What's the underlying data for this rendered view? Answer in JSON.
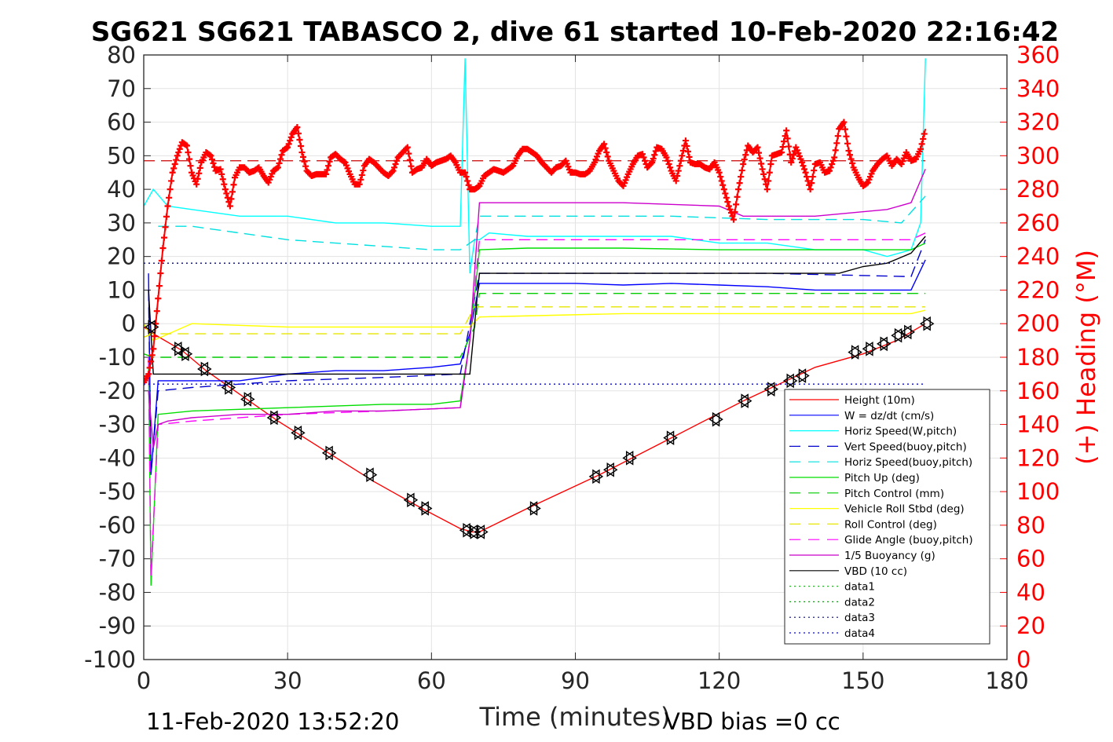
{
  "chart_data": {
    "type": "line",
    "title": "SG621 SG621 TABASCO 2, dive 61 started 10-Feb-2020 22:16:42",
    "xlabel": "Time (minutes)",
    "ylabel": "",
    "y2label": "(+) Heading (°M)",
    "xlim": [
      0,
      180
    ],
    "ylim": [
      -100,
      80
    ],
    "y2lim": [
      0,
      360
    ],
    "xticks": [
      "0",
      "30",
      "60",
      "90",
      "120",
      "150",
      "180"
    ],
    "yticks": [
      "80",
      "70",
      "60",
      "50",
      "40",
      "30",
      "20",
      "10",
      "0",
      "-10",
      "-20",
      "-30",
      "-40",
      "-50",
      "-60",
      "-70",
      "-80",
      "-90",
      "-100"
    ],
    "y2ticks": [
      "360",
      "340",
      "320",
      "300",
      "280",
      "260",
      "240",
      "220",
      "200",
      "180",
      "160",
      "140",
      "120",
      "100",
      "80",
      "60",
      "40",
      "20",
      "0"
    ],
    "grid": true,
    "legend_position": "bottom-right",
    "footer_left": "11-Feb-2020 13:52:20",
    "footer_right": "VBD bias =0 cc",
    "target_heading": 297,
    "series": [
      {
        "name": "Height (10m)",
        "color": "#ff0000",
        "style": "solid",
        "x": [
          0,
          2,
          8,
          13,
          20,
          28,
          38,
          48,
          58,
          66,
          68.5,
          70,
          80,
          95,
          110,
          125,
          140,
          150,
          157,
          163
        ],
        "y": [
          -1,
          -3,
          -8,
          -14,
          -21,
          -29,
          -38,
          -47,
          -55,
          -61,
          -62,
          -62,
          -55,
          -45,
          -34,
          -23,
          -13,
          -9,
          -5,
          0
        ]
      },
      {
        "name": "W = dz/dt (cm/s)",
        "color": "#0000ff",
        "style": "solid",
        "x": [
          1,
          1.5,
          3,
          10,
          20,
          30,
          40,
          50,
          60,
          66,
          68,
          70,
          80,
          90,
          100,
          110,
          120,
          130,
          140,
          150,
          160,
          163
        ],
        "y": [
          15,
          -45,
          -17,
          -17,
          -17,
          -15,
          -14,
          -14,
          -13,
          -12,
          -3,
          12,
          12,
          12,
          11.5,
          12,
          11.5,
          11,
          10,
          10,
          10,
          19
        ]
      },
      {
        "name": "Horiz Speed(W,pitch)",
        "color": "#00ffff",
        "style": "solid",
        "x": [
          0,
          2,
          5,
          10,
          20,
          30,
          40,
          50,
          60,
          66,
          67,
          68,
          69,
          70,
          72,
          80,
          90,
          100,
          110,
          120,
          130,
          140,
          150,
          155,
          160,
          162,
          163
        ],
        "y": [
          35,
          40,
          35,
          34,
          32,
          32,
          30,
          30,
          29,
          29,
          79,
          15,
          25,
          25,
          27,
          26,
          26,
          26,
          26,
          24,
          24,
          22,
          22,
          20,
          22,
          30,
          79
        ]
      },
      {
        "name": "Vert Speed(buoy,pitch)",
        "color": "#0000cc",
        "style": "dashed",
        "x": [
          1,
          1.5,
          3,
          10,
          30,
          50,
          66,
          68,
          70,
          100,
          130,
          160,
          163
        ],
        "y": [
          10,
          -45,
          -20,
          -19,
          -17,
          -16,
          -15,
          0,
          15,
          15,
          15,
          14,
          25
        ]
      },
      {
        "name": "Horiz Speed(buoy,pitch)",
        "color": "#00e0e0",
        "style": "dashed",
        "x": [
          3,
          10,
          20,
          30,
          40,
          50,
          60,
          66,
          69,
          70,
          90,
          110,
          130,
          150,
          158,
          163
        ],
        "y": [
          29,
          29,
          27,
          25,
          24,
          23,
          22,
          22,
          25,
          32,
          32,
          32,
          31,
          31,
          30,
          38
        ]
      },
      {
        "name": "Pitch Up (deg)",
        "color": "#00dd00",
        "style": "solid",
        "x": [
          1,
          1.5,
          3,
          10,
          30,
          50,
          60,
          66,
          68,
          70,
          80,
          100,
          120,
          140,
          160,
          163
        ],
        "y": [
          -10,
          -78,
          -27,
          -26,
          -25,
          -24,
          -24,
          -23,
          -5,
          22,
          22.5,
          22.5,
          22,
          22,
          22,
          24
        ]
      },
      {
        "name": "Pitch Control (mm)",
        "color": "#00cc00",
        "style": "dashed",
        "x": [
          0,
          2,
          10,
          66,
          69,
          70,
          163
        ],
        "y": [
          -9,
          -10,
          -10,
          -10,
          -1,
          9,
          9
        ]
      },
      {
        "name": "Vehicle Roll Stbd (deg)",
        "color": "#ffff00",
        "style": "solid",
        "x": [
          0,
          2,
          10,
          30,
          50,
          66,
          68,
          70,
          100,
          130,
          160,
          163
        ],
        "y": [
          0,
          -5,
          0,
          -1,
          -1,
          -1,
          -1,
          2,
          3,
          3,
          3,
          4
        ]
      },
      {
        "name": "Roll Control (deg)",
        "color": "#e6e600",
        "style": "dashed",
        "x": [
          0,
          2,
          10,
          66,
          69,
          70,
          163
        ],
        "y": [
          -4,
          -3,
          -3,
          -3,
          5,
          5,
          5
        ]
      },
      {
        "name": "Glide Angle (buoy,pitch)",
        "color": "#ff00ff",
        "style": "dashed",
        "x": [
          1,
          1.5,
          3,
          10,
          30,
          50,
          66,
          68,
          70,
          100,
          130,
          160,
          163
        ],
        "y": [
          -10,
          -75,
          -30,
          -29,
          -27,
          -26,
          -25,
          -5,
          25,
          25,
          25,
          25,
          27
        ]
      },
      {
        "name": "1/5 Buoyancy (g)",
        "color": "#cc00cc",
        "style": "solid",
        "x": [
          1,
          2,
          3,
          5,
          10,
          20,
          30,
          40,
          50,
          66,
          68,
          70,
          100,
          120,
          125,
          140,
          155,
          160,
          163
        ],
        "y": [
          -20,
          -37,
          -30,
          -29,
          -28,
          -27,
          -27,
          -26,
          -26,
          -25,
          -5,
          36,
          36,
          35,
          32,
          32,
          34,
          36,
          46
        ]
      },
      {
        "name": "VBD (10 cc)",
        "color": "#000000",
        "style": "solid",
        "x": [
          1,
          2,
          3,
          66,
          68,
          70,
          145,
          150,
          155,
          160,
          163
        ],
        "y": [
          10,
          -15,
          -15,
          -15,
          -15,
          15,
          15,
          17,
          18,
          21,
          26
        ]
      },
      {
        "name": "data1",
        "color": "#00cc00",
        "style": "dotted",
        "x": [],
        "y": []
      },
      {
        "name": "data2",
        "color": "#00aa00",
        "style": "dotted",
        "x": [],
        "y": []
      },
      {
        "name": "data3",
        "color": "#00008b",
        "style": "dotted",
        "x": [
          0,
          163
        ],
        "y": [
          18,
          18
        ]
      },
      {
        "name": "data4",
        "color": "#0000ff",
        "style": "dotted",
        "x": [
          0,
          163
        ],
        "y": [
          -18,
          -18
        ]
      }
    ],
    "heading_series": {
      "name": "(+) Heading",
      "color": "#ff0000",
      "x": [
        0,
        1,
        2,
        3,
        4,
        5,
        6,
        7,
        8,
        9,
        10,
        11,
        12,
        13,
        14,
        15,
        16,
        17,
        18,
        19,
        20,
        21,
        22,
        23,
        24,
        25,
        26,
        27,
        28,
        29,
        30,
        31,
        32,
        33,
        34,
        35,
        36,
        37,
        38,
        39,
        40,
        41,
        42,
        43,
        44,
        45,
        46,
        47,
        48,
        49,
        50,
        51,
        52,
        53,
        54,
        55,
        56,
        57,
        58,
        59,
        60,
        61,
        62,
        63,
        64,
        65,
        66,
        67,
        68,
        69,
        70,
        71,
        72,
        73,
        74,
        75,
        76,
        77,
        78,
        79,
        80,
        81,
        82,
        83,
        84,
        85,
        86,
        87,
        88,
        89,
        90,
        91,
        92,
        93,
        94,
        95,
        96,
        97,
        98,
        99,
        100,
        101,
        102,
        103,
        104,
        105,
        106,
        107,
        108,
        109,
        110,
        111,
        112,
        113,
        114,
        115,
        116,
        117,
        118,
        119,
        120,
        121,
        122,
        123,
        124,
        125,
        126,
        127,
        128,
        129,
        130,
        131,
        132,
        133,
        134,
        135,
        136,
        137,
        138,
        139,
        140,
        141,
        142,
        143,
        144,
        145,
        146,
        147,
        148,
        149,
        150,
        151,
        152,
        153,
        154,
        155,
        156,
        157,
        158,
        159,
        160,
        161,
        162,
        163
      ],
      "y": [
        165,
        170,
        185,
        215,
        245,
        270,
        290,
        300,
        308,
        306,
        290,
        283,
        296,
        302,
        300,
        291,
        292,
        280,
        270,
        287,
        293,
        293,
        290,
        291,
        293,
        288,
        284,
        291,
        293,
        303,
        305,
        313,
        317,
        302,
        291,
        288,
        289,
        289,
        289,
        299,
        301,
        298,
        296,
        289,
        283,
        283,
        294,
        298,
        296,
        293,
        290,
        288,
        291,
        299,
        302,
        305,
        290,
        292,
        293,
        298,
        294,
        296,
        297,
        298,
        300,
        296,
        290,
        290,
        280,
        280,
        282,
        288,
        290,
        292,
        291,
        290,
        292,
        294,
        300,
        304,
        304,
        302,
        300,
        296,
        293,
        290,
        293,
        294,
        297,
        290,
        290,
        289,
        289,
        291,
        296,
        303,
        307,
        297,
        291,
        285,
        282,
        289,
        295,
        300,
        301,
        293,
        296,
        305,
        304,
        299,
        291,
        285,
        297,
        309,
        296,
        295,
        295,
        293,
        292,
        296,
        290,
        280,
        270,
        262,
        280,
        295,
        306,
        302,
        305,
        292,
        280,
        300,
        301,
        302,
        315,
        296,
        305,
        298,
        290,
        280,
        295,
        296,
        290,
        291,
        299,
        316,
        320,
        303,
        293,
        287,
        282,
        284,
        291,
        295,
        298,
        300,
        294,
        298,
        295,
        302,
        297,
        298,
        304,
        316
      ]
    },
    "markers": {
      "x": [
        2,
        7.5,
        9,
        13,
        18,
        22,
        27.5,
        32.5,
        39,
        47.5,
        56,
        59,
        67,
        68.5,
        70,
        81,
        94,
        97,
        101,
        109.5,
        119,
        125,
        130.5,
        134.5,
        137,
        148,
        151,
        154,
        157,
        159,
        163
      ],
      "y": [
        -1,
        -7.5,
        -9,
        -13.5,
        -19,
        -22.5,
        -28,
        -32.5,
        -38.5,
        -45,
        -52.5,
        -55,
        -61.5,
        -62,
        -62,
        -55,
        -45.5,
        -43.5,
        -40,
        -34,
        -28.5,
        -23,
        -19.5,
        -17,
        -15.5,
        -8.5,
        -7.5,
        -6,
        -3.5,
        -2.5,
        0
      ]
    }
  }
}
